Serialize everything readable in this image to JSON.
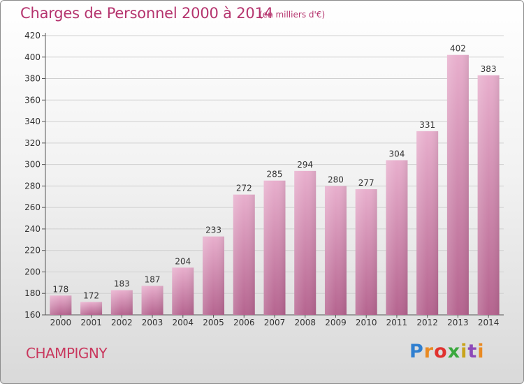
{
  "header": {
    "title": "Charges de Personnel 2000 à 2014",
    "unit": "(en milliers d'€)"
  },
  "footer": {
    "city": "CHAMPIGNY",
    "logo": "Proxiti"
  },
  "colors": {
    "title": "#b5346e",
    "city": "#c9385e",
    "bar_top": "#e6aacb",
    "bar_bottom": "#b5648f"
  },
  "chart_data": {
    "type": "bar",
    "categories": [
      "2000",
      "2001",
      "2002",
      "2003",
      "2004",
      "2005",
      "2006",
      "2007",
      "2008",
      "2009",
      "2010",
      "2011",
      "2012",
      "2013",
      "2014"
    ],
    "values": [
      178,
      172,
      183,
      187,
      204,
      233,
      272,
      285,
      294,
      280,
      277,
      304,
      331,
      402,
      383
    ],
    "title": "Charges de Personnel 2000 à 2014",
    "xlabel": "",
    "ylabel": "",
    "ylim": [
      160,
      420
    ],
    "yticks": [
      160,
      180,
      200,
      220,
      240,
      260,
      280,
      300,
      320,
      340,
      360,
      380,
      400,
      420
    ],
    "grid": true,
    "data_labels": true
  }
}
